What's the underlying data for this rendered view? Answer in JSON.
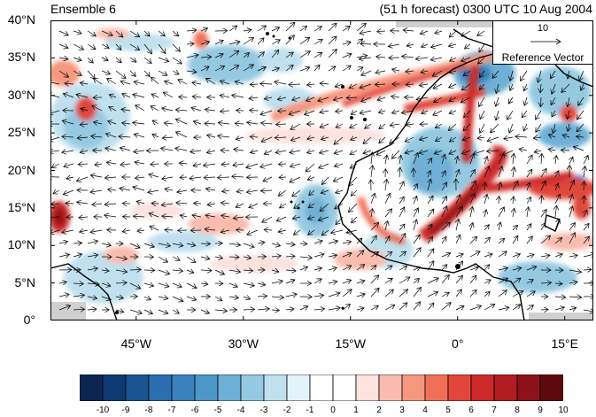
{
  "header": {
    "left_title": "Ensemble 6",
    "right_title": "(51 h forecast) 0300 UTC 10 Aug 2004"
  },
  "axes": {
    "lat_ticks": [
      {
        "label": "40°N",
        "value": 40
      },
      {
        "label": "35°N",
        "value": 35
      },
      {
        "label": "30°N",
        "value": 30
      },
      {
        "label": "25°N",
        "value": 25
      },
      {
        "label": "20°N",
        "value": 20
      },
      {
        "label": "15°N",
        "value": 15
      },
      {
        "label": "10°N",
        "value": 10
      },
      {
        "label": "5°N",
        "value": 5
      },
      {
        "label": "0°",
        "value": 0
      }
    ],
    "lon_ticks": [
      {
        "label": "45°W",
        "value": -45
      },
      {
        "label": "30°W",
        "value": -30
      },
      {
        "label": "15°W",
        "value": -15
      },
      {
        "label": "0°",
        "value": 0
      },
      {
        "label": "15°E",
        "value": 15
      }
    ],
    "lon_range": [
      -57,
      19
    ],
    "lat_range": [
      0,
      40
    ]
  },
  "reference_vector": {
    "magnitude": "10",
    "title": "Reference Vector"
  },
  "colorbar": {
    "labels": [
      "-10",
      "-9",
      "-8",
      "-7",
      "-6",
      "-5",
      "-4",
      "-3",
      "-2",
      "-1",
      "0",
      "1",
      "2",
      "3",
      "4",
      "5",
      "6",
      "7",
      "8",
      "9",
      "10"
    ],
    "colors": [
      "#0a2651",
      "#0d3a72",
      "#1a5592",
      "#2a6eb0",
      "#3a80bc",
      "#4d96c8",
      "#6fb0d6",
      "#95c9e2",
      "#bfe0ef",
      "#e4f3fa",
      "#ffffff",
      "#ffffff",
      "#fde2de",
      "#f9bcae",
      "#f6977f",
      "#f07057",
      "#e0473a",
      "#cc2a2a",
      "#b01e24",
      "#8c1219",
      "#5e0a0d"
    ]
  },
  "colors": {
    "ocean": "#ffffff",
    "missing": "#d0d0d0",
    "coast": "#000000"
  }
}
